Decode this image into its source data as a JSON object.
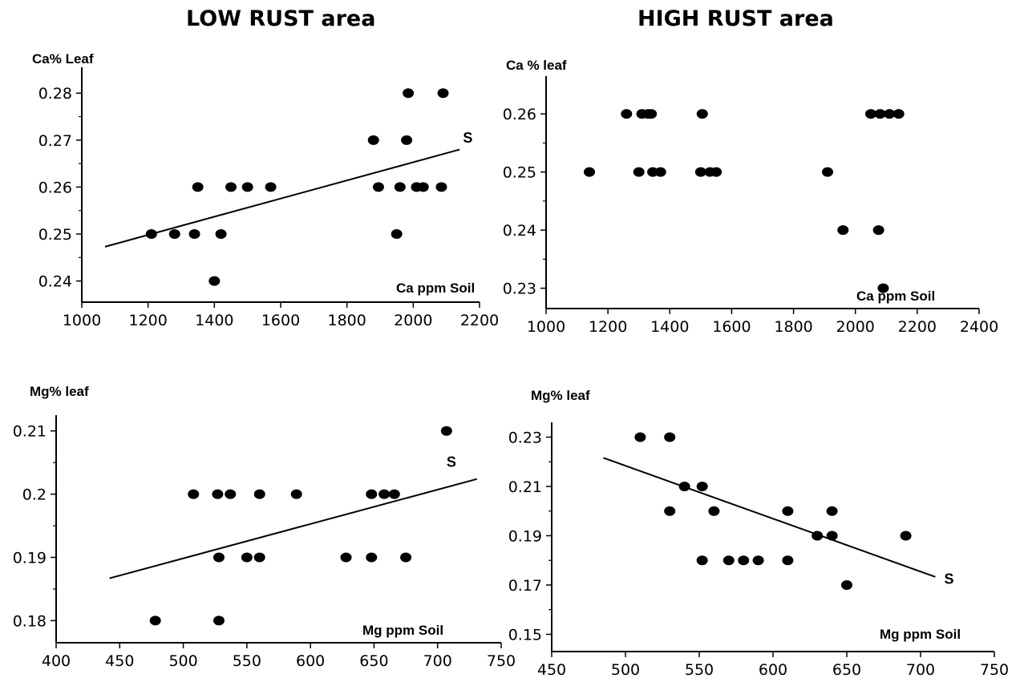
{
  "sections": {
    "low": "LOW RUST area",
    "high": "HIGH RUST area"
  },
  "chart_data": [
    {
      "id": "low-ca",
      "type": "scatter",
      "title": "",
      "ylabel": "Ca% Leaf",
      "xlabel": "Ca ppm Soil",
      "xticks": [
        1000,
        1200,
        1400,
        1600,
        1800,
        2000,
        2200
      ],
      "yticks": [
        0.24,
        0.25,
        0.26,
        0.27,
        0.28
      ],
      "xlim": [
        1000,
        2200
      ],
      "ylim": [
        0.2355,
        0.2855
      ],
      "points": [
        [
          1210,
          0.25
        ],
        [
          1280,
          0.25
        ],
        [
          1340,
          0.25
        ],
        [
          1420,
          0.25
        ],
        [
          1350,
          0.26
        ],
        [
          1450,
          0.26
        ],
        [
          1500,
          0.26
        ],
        [
          1570,
          0.26
        ],
        [
          1400,
          0.24
        ],
        [
          1880,
          0.27
        ],
        [
          1980,
          0.27
        ],
        [
          1985,
          0.28
        ],
        [
          2090,
          0.28
        ],
        [
          1895,
          0.26
        ],
        [
          1960,
          0.26
        ],
        [
          2010,
          0.26
        ],
        [
          2030,
          0.26
        ],
        [
          2085,
          0.26
        ],
        [
          1950,
          0.25
        ]
      ],
      "trendline": [
        [
          1070,
          0.2473
        ],
        [
          2140,
          0.268
        ]
      ],
      "trend_label": "S",
      "trend_label_at": [
        2150,
        0.2695
      ],
      "marker_color": "#000000",
      "grid": false
    },
    {
      "id": "high-ca",
      "type": "scatter",
      "title": "",
      "ylabel": "Ca % leaf",
      "xlabel": "Ca ppm Soil",
      "xticks": [
        1000,
        1200,
        1400,
        1600,
        1800,
        2000,
        2200,
        2400
      ],
      "yticks": [
        0.23,
        0.24,
        0.25,
        0.26
      ],
      "xlim": [
        1000,
        2400
      ],
      "ylim": [
        0.2265,
        0.2665
      ],
      "points": [
        [
          1140,
          0.25
        ],
        [
          1300,
          0.25
        ],
        [
          1345,
          0.25
        ],
        [
          1370,
          0.25
        ],
        [
          1500,
          0.25
        ],
        [
          1530,
          0.25
        ],
        [
          1550,
          0.25
        ],
        [
          1910,
          0.25
        ],
        [
          1260,
          0.26
        ],
        [
          1310,
          0.26
        ],
        [
          1330,
          0.26
        ],
        [
          1340,
          0.26
        ],
        [
          1505,
          0.26
        ],
        [
          2050,
          0.26
        ],
        [
          2080,
          0.26
        ],
        [
          2110,
          0.26
        ],
        [
          2140,
          0.26
        ],
        [
          1960,
          0.24
        ],
        [
          2075,
          0.24
        ],
        [
          2090,
          0.23
        ]
      ],
      "trendline": null,
      "trend_label": "",
      "marker_color": "#000000",
      "grid": false
    },
    {
      "id": "low-mg",
      "type": "scatter",
      "title": "",
      "ylabel": "Mg% leaf",
      "xlabel": "Mg ppm Soil",
      "xticks": [
        400,
        450,
        500,
        550,
        600,
        650,
        700,
        750
      ],
      "yticks": [
        0.18,
        0.19,
        0.2,
        0.21
      ],
      "ytick_labels": [
        "0.18",
        "0.19",
        "0.2",
        "0.21"
      ],
      "xlim": [
        400,
        750
      ],
      "ylim": [
        0.1765,
        0.2125
      ],
      "points": [
        [
          478,
          0.18
        ],
        [
          528,
          0.18
        ],
        [
          528,
          0.19
        ],
        [
          550,
          0.19
        ],
        [
          560,
          0.19
        ],
        [
          628,
          0.19
        ],
        [
          648,
          0.19
        ],
        [
          675,
          0.19
        ],
        [
          508,
          0.2
        ],
        [
          527,
          0.2
        ],
        [
          537,
          0.2
        ],
        [
          560,
          0.2
        ],
        [
          589,
          0.2
        ],
        [
          648,
          0.2
        ],
        [
          658,
          0.2
        ],
        [
          666,
          0.2
        ],
        [
          707,
          0.21
        ]
      ],
      "trendline": [
        [
          442,
          0.1867
        ],
        [
          731,
          0.2024
        ]
      ],
      "trend_label": "S",
      "trend_label_at": [
        707,
        0.2043
      ],
      "marker_color": "#000000",
      "grid": false
    },
    {
      "id": "high-mg",
      "type": "scatter",
      "title": "",
      "ylabel": "Mg% leaf",
      "xlabel": "Mg ppm Soil",
      "xticks": [
        450,
        500,
        550,
        600,
        650,
        700,
        750
      ],
      "yticks": [
        0.15,
        0.17,
        0.19,
        0.21,
        0.23
      ],
      "xlim": [
        450,
        750
      ],
      "ylim": [
        0.143,
        0.236
      ],
      "points": [
        [
          510,
          0.23
        ],
        [
          530,
          0.23
        ],
        [
          540,
          0.21
        ],
        [
          552,
          0.21
        ],
        [
          530,
          0.2
        ],
        [
          560,
          0.2
        ],
        [
          610,
          0.2
        ],
        [
          640,
          0.2
        ],
        [
          630,
          0.19
        ],
        [
          640,
          0.19
        ],
        [
          690,
          0.19
        ],
        [
          552,
          0.18
        ],
        [
          570,
          0.18
        ],
        [
          580,
          0.18
        ],
        [
          590,
          0.18
        ],
        [
          610,
          0.18
        ],
        [
          650,
          0.17
        ]
      ],
      "trendline": [
        [
          485,
          0.2216
        ],
        [
          710,
          0.1733
        ]
      ],
      "trend_label": "S",
      "trend_label_at": [
        716,
        0.1705
      ],
      "marker_color": "#000000",
      "grid": false
    }
  ]
}
